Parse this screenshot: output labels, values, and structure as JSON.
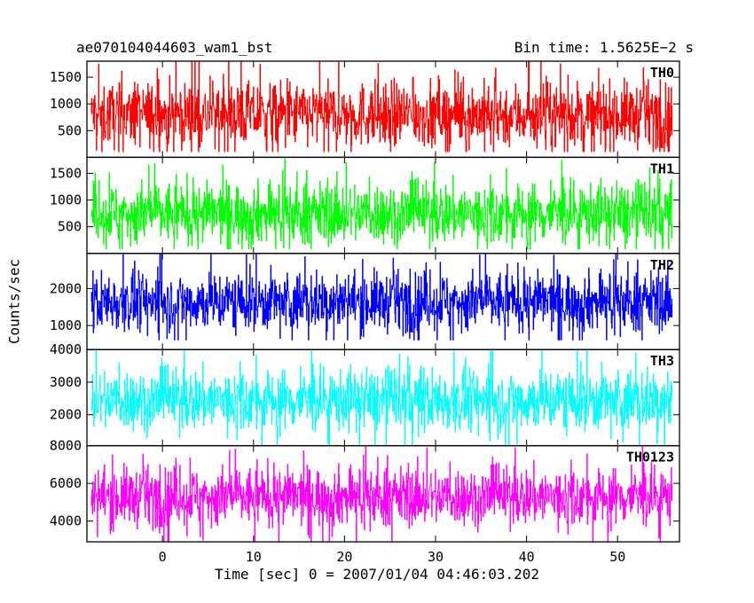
{
  "header": {
    "title": "ae070104044603_wam1_bst",
    "bin_time": "Bin time: 1.5625E−2 s"
  },
  "chart_data": {
    "type": "line",
    "title": "ae070104044603_wam1_bst",
    "xlabel": "Time [sec] 0 = 2007/01/04 04:46:03.202",
    "ylabel": "Counts/sec",
    "xlim": [
      -8.3,
      56.8
    ],
    "x_ticks": [
      0,
      10,
      20,
      30,
      40,
      50
    ],
    "x_range_data": [
      -7.8,
      56.0
    ],
    "panels": [
      {
        "name": "TH0",
        "color": "#ff0000",
        "ylim": [
          0,
          1800
        ],
        "y_ticks": [
          500,
          1000,
          1500
        ],
        "mean": 800,
        "typical_range": [
          250,
          1450
        ],
        "extreme_range": [
          100,
          1800
        ]
      },
      {
        "name": "TH1",
        "color": "#00ff00",
        "ylim": [
          0,
          1800
        ],
        "y_ticks": [
          500,
          1000,
          1500
        ],
        "mean": 750,
        "typical_range": [
          250,
          1400
        ],
        "extreme_range": [
          80,
          1800
        ]
      },
      {
        "name": "TH2",
        "color": "#0000ff",
        "ylim": [
          350,
          2950
        ],
        "y_ticks": [
          1000,
          2000
        ],
        "mean": 1650,
        "typical_range": [
          900,
          2500
        ],
        "extreme_range": [
          600,
          2950
        ]
      },
      {
        "name": "TH3",
        "color": "#00ffff",
        "ylim": [
          1050,
          4000
        ],
        "y_ticks": [
          2000,
          3000,
          4000
        ],
        "mean": 2450,
        "typical_range": [
          1500,
          3400
        ],
        "extreme_range": [
          1050,
          4000
        ]
      },
      {
        "name": "TH0123",
        "color": "#ff00ff",
        "ylim": [
          2900,
          8000
        ],
        "y_ticks": [
          4000,
          6000,
          8000
        ],
        "mean": 5300,
        "typical_range": [
          3900,
          7000
        ],
        "extreme_range": [
          2900,
          8000
        ]
      }
    ]
  }
}
